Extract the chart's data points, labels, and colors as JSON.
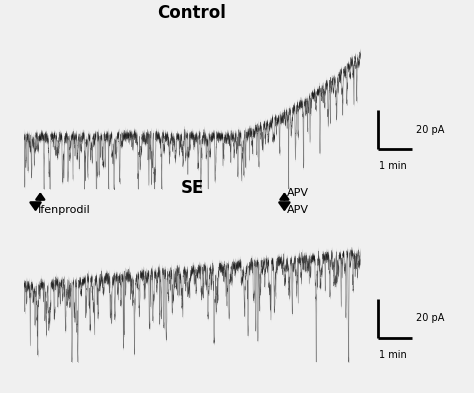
{
  "title_control": "Control",
  "title_se": "SE",
  "label_ifenprodil": "Ifenprodil",
  "label_apv": "APV",
  "scale_bar_pa": "20 pA",
  "scale_bar_min": "1 min",
  "bg_color": "#f0f0f0",
  "trace_color": "#1a1a1a",
  "figsize": [
    4.74,
    3.93
  ],
  "dpi": 100,
  "n_points": 3000
}
